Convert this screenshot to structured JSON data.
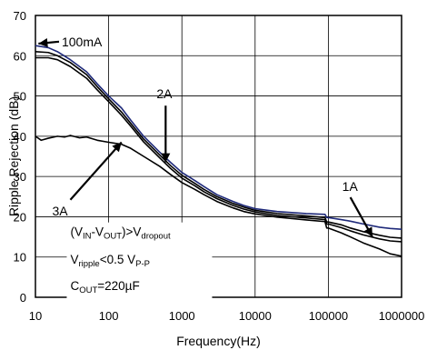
{
  "chart_data": {
    "type": "line",
    "xlabel": "Frequency(Hz)",
    "ylabel": "Ripple Rejection (dB)",
    "x_scale": "log",
    "xlim": [
      10,
      1000000
    ],
    "ylim": [
      0,
      70
    ],
    "x_ticks": [
      "10",
      "100",
      "1000",
      "10000",
      "100000",
      "1000000"
    ],
    "y_ticks": [
      "0",
      "10",
      "20",
      "30",
      "40",
      "50",
      "60",
      "70"
    ],
    "grid": true,
    "series": [
      {
        "name": "100mA",
        "color": "#1f2a7a",
        "x": [
          10,
          15,
          20,
          30,
          50,
          70,
          100,
          150,
          200,
          300,
          500,
          700,
          1000,
          1500,
          2000,
          3000,
          5000,
          7000,
          10000,
          20000,
          50000,
          90000,
          95000,
          100000,
          150000,
          200000,
          300000,
          500000,
          700000,
          1000000
        ],
        "y": [
          62.5,
          62,
          61,
          59,
          56,
          53,
          50,
          47,
          44,
          40,
          36,
          33.5,
          31,
          29,
          27.5,
          25.5,
          23.8,
          22.8,
          22,
          21.3,
          20.8,
          20.6,
          19.8,
          19.8,
          19.3,
          18.9,
          18.2,
          17.4,
          17.1,
          16.9
        ]
      },
      {
        "name": "2A",
        "color": "#000000",
        "x": [
          10,
          15,
          20,
          30,
          50,
          70,
          100,
          150,
          200,
          300,
          500,
          700,
          1000,
          1500,
          2000,
          3000,
          5000,
          7000,
          10000,
          20000,
          50000,
          90000,
          95000,
          100000,
          150000,
          200000,
          300000,
          500000,
          700000,
          1000000
        ],
        "y": [
          61,
          60.8,
          60,
          58.3,
          55.3,
          52.3,
          49.3,
          46,
          43.2,
          39.3,
          35.3,
          32.7,
          30.3,
          28.3,
          26.8,
          25,
          23.3,
          22.4,
          21.6,
          20.8,
          20.2,
          19.8,
          18.7,
          18.7,
          18,
          17.2,
          16.3,
          15.4,
          14.9,
          14.7
        ]
      },
      {
        "name": "1A",
        "color": "#000000",
        "x": [
          10,
          15,
          20,
          30,
          50,
          70,
          100,
          150,
          200,
          300,
          500,
          700,
          1000,
          1500,
          2000,
          3000,
          5000,
          7000,
          10000,
          20000,
          50000,
          90000,
          95000,
          100000,
          150000,
          200000,
          300000,
          500000,
          700000,
          1000000
        ],
        "y": [
          59.5,
          59.5,
          59,
          57.3,
          54.4,
          51.5,
          48.6,
          45.2,
          42.5,
          38.6,
          34.6,
          32,
          29.6,
          27.7,
          26.2,
          24.5,
          22.8,
          21.9,
          21.2,
          20.3,
          19.7,
          19.3,
          18.2,
          18.2,
          17.3,
          16.5,
          15.5,
          14.5,
          14,
          13.8
        ]
      },
      {
        "name": "3A",
        "color": "#000000",
        "x": [
          10,
          12,
          15,
          20,
          25,
          30,
          40,
          50,
          70,
          100,
          150,
          200,
          300,
          500,
          700,
          1000,
          1500,
          2000,
          3000,
          5000,
          7000,
          10000,
          20000,
          50000,
          90000,
          95000,
          100000,
          150000,
          200000,
          300000,
          500000,
          700000,
          1000000
        ],
        "y": [
          40,
          39,
          39.5,
          40,
          39.8,
          40.2,
          39.6,
          39.8,
          39,
          38.5,
          38,
          37,
          35,
          32.5,
          30.5,
          28.5,
          26.8,
          25.5,
          23.8,
          22.2,
          21.3,
          20.7,
          19.9,
          19.2,
          18.8,
          17.2,
          17.2,
          16,
          15,
          13.5,
          12,
          10.8,
          10.2
        ]
      }
    ],
    "annotations": [
      {
        "label": "100mA",
        "text_x": 21,
        "text_y": 63.5,
        "arrow_to_x": 11,
        "arrow_to_y": 63
      },
      {
        "label": "2A",
        "text_x": 600,
        "text_y": 48.5,
        "arrow_to_x": 600,
        "arrow_to_y": 33.5
      },
      {
        "label": "3A",
        "text_x": 30,
        "text_y": 21.5,
        "arrow_to_x": 150,
        "arrow_to_y": 38.5
      },
      {
        "label": "1A",
        "text_x": 200000,
        "text_y": 25.5,
        "arrow_to_x": 400000,
        "arrow_to_y": 15
      }
    ],
    "conditions": {
      "line1": {
        "p1": "(V",
        "s1": "IN",
        "p2": "-V",
        "s2": "OUT",
        "p3": ")>V",
        "s3": "dropout"
      },
      "line2": {
        "p1": "V",
        "s1": "ripple",
        "p2": "<0.5 V",
        "s2": "P-P"
      },
      "line3": {
        "p1": "C",
        "s1": "OUT",
        "p2": "=220µF"
      }
    }
  }
}
